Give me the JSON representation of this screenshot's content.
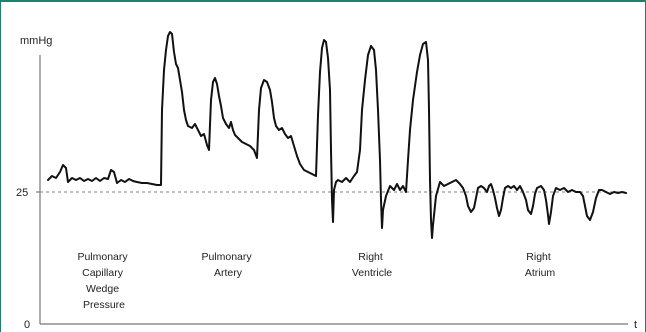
{
  "axes": {
    "y_unit": "mmHg",
    "x_unit": "t",
    "y_tick_25": "25",
    "y_tick_0": "0"
  },
  "regions": [
    {
      "lines": [
        "Pulmonary",
        "Capillary",
        "Wedge",
        "Pressure"
      ]
    },
    {
      "lines": [
        "Pulmonary",
        "Artery"
      ]
    },
    {
      "lines": [
        "Right",
        "Ventricle"
      ]
    },
    {
      "lines": [
        "Right",
        "Atrium"
      ]
    }
  ],
  "reference_line_value": 25,
  "colors": {
    "frame": "#1f7f6e",
    "trace": "#111111",
    "axis": "#777777",
    "dashed": "#999999"
  }
}
